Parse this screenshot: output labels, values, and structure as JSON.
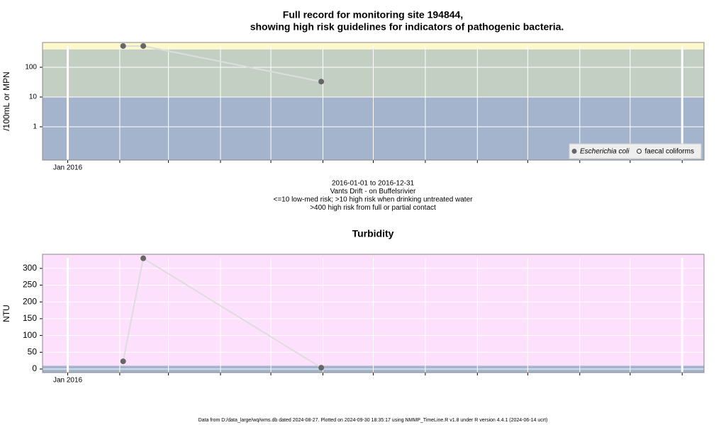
{
  "chart_data": [
    {
      "type": "line",
      "title": [
        "Full record for monitoring site 194844,",
        "showing high risk guidelines for indicators of pathogenic bacteria."
      ],
      "subtitle": [
        "2016-01-01 to 2016-12-31",
        "Vants Drift - on Buffelsrivier",
        "<=10 low-med risk; >10 high risk when drinking untreated water",
        ">400 high risk from full or partial contact"
      ],
      "y_label": "/100mL or MPN",
      "log_y": true,
      "x": [
        "2016-02-03",
        "2016-02-15",
        "2016-05-31"
      ],
      "xlim": [
        "2015-12-17",
        "2017-01-14"
      ],
      "xticks": [
        {
          "value": "2016-01-01",
          "label": "Jan 2016"
        }
      ],
      "xgrid": [
        "2016-01-01",
        "2016-02-01",
        "2016-03-01",
        "2016-04-01",
        "2016-05-01",
        "2016-06-01",
        "2016-07-01",
        "2016-08-01",
        "2016-09-01",
        "2016-10-01",
        "2016-11-01",
        "2016-12-01",
        "2017-01-01"
      ],
      "ylim": [
        0.076,
        680
      ],
      "yticks": [
        1,
        10,
        100
      ],
      "bands": [
        {
          "to": 10,
          "color": "#a3b4cc"
        },
        {
          "from": 10,
          "to": 400,
          "color": "#c4cfc4"
        },
        {
          "from": 400,
          "color": "#fdf9cc"
        }
      ],
      "series": [
        {
          "name": "Escherichia coli",
          "color": "#666666",
          "line_color": "#dddddd",
          "filled": true,
          "values": [
            518,
            518,
            33
          ]
        },
        {
          "name": "faecal coliforms",
          "color": "#333333",
          "line_color": "#dddddd",
          "filled": false,
          "values": [
            null,
            null,
            null
          ]
        }
      ],
      "legend": "bottom-right"
    },
    {
      "type": "line",
      "title": [
        "Turbidity"
      ],
      "y_label": "NTU",
      "log_y": false,
      "x": [
        "2016-02-03",
        "2016-02-15",
        "2016-05-31"
      ],
      "xlim": [
        "2015-12-17",
        "2017-01-14"
      ],
      "xticks": [
        {
          "value": "2016-01-01",
          "label": "Jan 2016"
        }
      ],
      "xgrid": [
        "2016-01-01",
        "2016-02-01",
        "2016-03-01",
        "2016-04-01",
        "2016-05-01",
        "2016-06-01",
        "2016-07-01",
        "2016-08-01",
        "2016-09-01",
        "2016-10-01",
        "2016-11-01",
        "2016-12-01",
        "2017-01-01"
      ],
      "ylim": [
        -10.6,
        342
      ],
      "yticks": [
        0,
        50,
        100,
        150,
        200,
        250,
        300
      ],
      "bands": [
        {
          "to": 10,
          "color": "#a3b4cc"
        },
        {
          "from": 10,
          "color": "#fde0fb"
        }
      ],
      "series": [
        {
          "name": "Turbidity",
          "color": "#666666",
          "line_color": "#dddddd",
          "filled": true,
          "values": [
            23,
            330,
            4
          ]
        }
      ]
    }
  ],
  "footer": "Data from D:/data_large/wq/wms.db dated 2024-08-27. Plotted on 2024-09-30 18:35:17 using NMMP_TimeLine.R v1.8 under R version 4.4.1 (2024-06-14 ucrt)"
}
